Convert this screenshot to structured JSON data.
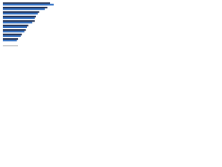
{
  "chart_data": {
    "type": "bar",
    "orientation": "horizontal",
    "categories": [
      null,
      null,
      null,
      null,
      null,
      null,
      null,
      null,
      null
    ],
    "series": [
      {
        "color": "#1f2d4e",
        "values": [
          74,
          70,
          57,
          52,
          50,
          40,
          36,
          30,
          24
        ]
      },
      {
        "color": "#2f6fc4",
        "values": [
          80,
          66,
          55,
          50,
          46,
          38,
          34,
          28,
          22
        ]
      }
    ]
  }
}
